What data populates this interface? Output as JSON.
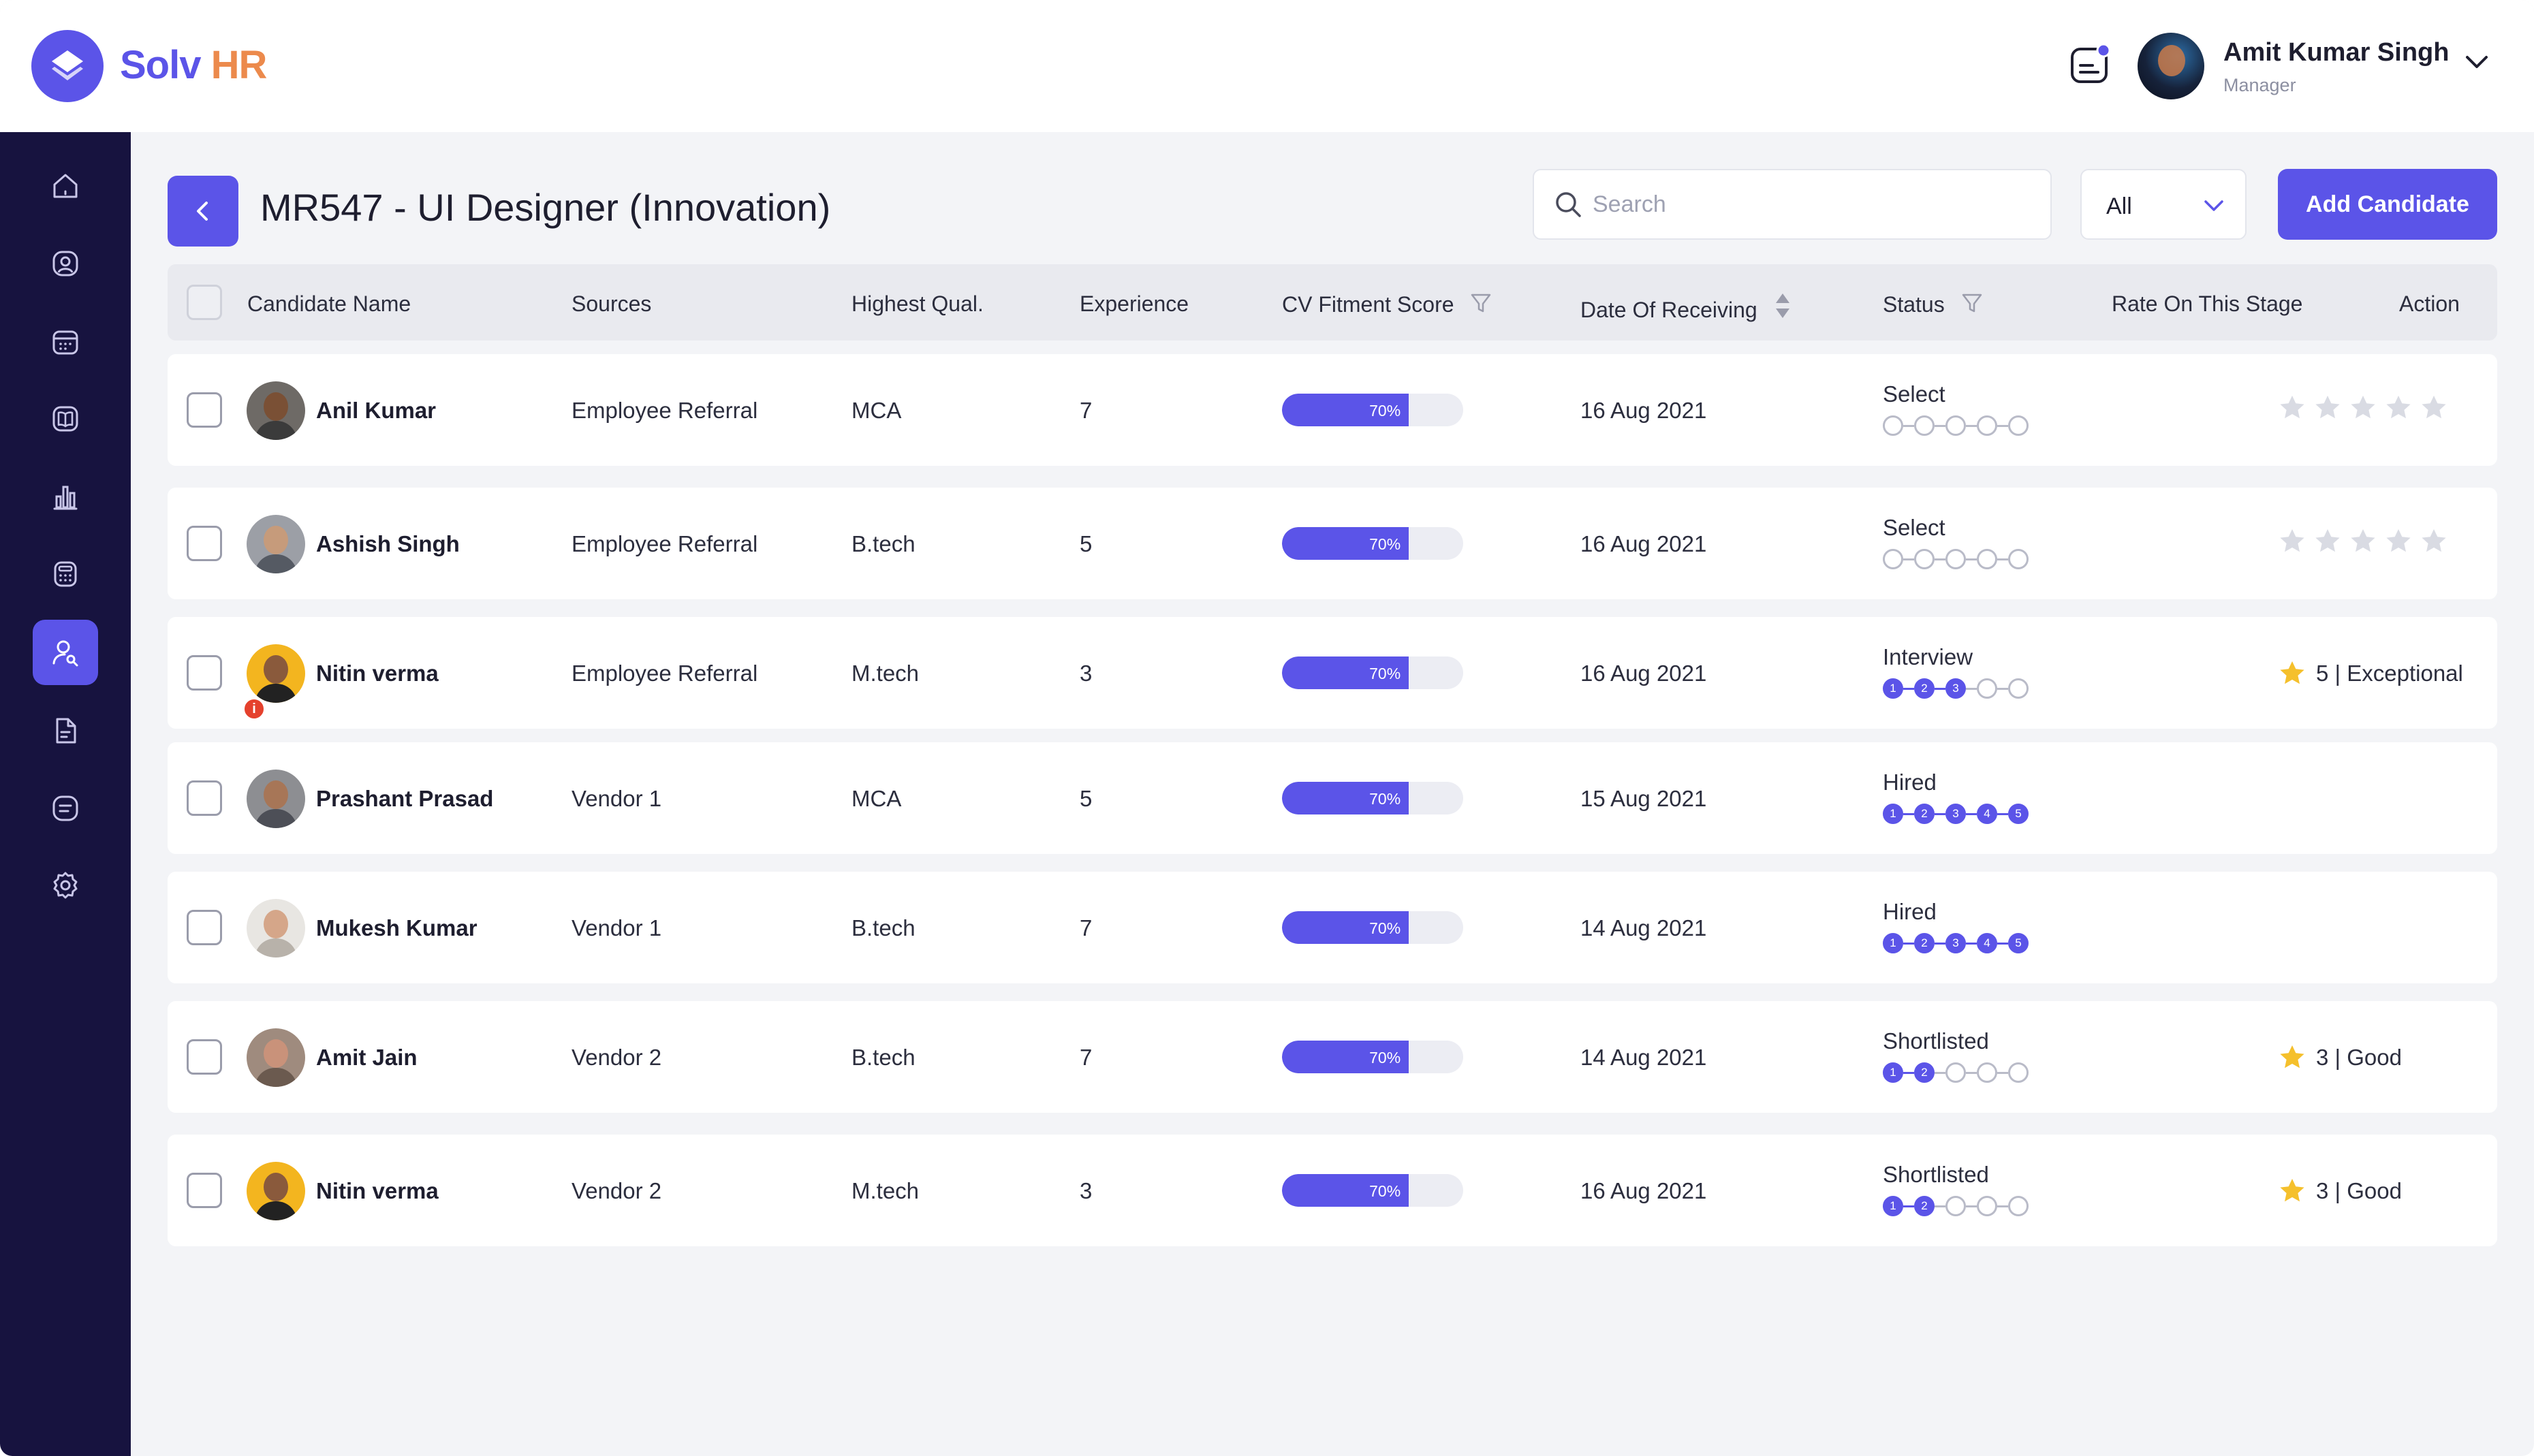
{
  "brand": {
    "part1": "Solv",
    "part2": "HR"
  },
  "user": {
    "name": "Amit Kumar Singh",
    "role": "Manager"
  },
  "sidebar": {
    "items": [
      {
        "icon": "home-icon"
      },
      {
        "icon": "user-circle-icon"
      },
      {
        "icon": "calendar-icon"
      },
      {
        "icon": "book-icon"
      },
      {
        "icon": "bar-chart-icon"
      },
      {
        "icon": "calculator-icon"
      },
      {
        "icon": "user-search-icon",
        "active": true
      },
      {
        "icon": "document-icon"
      },
      {
        "icon": "list-icon"
      },
      {
        "icon": "settings-icon"
      }
    ]
  },
  "page": {
    "title": "MR547 - UI Designer (Innovation)"
  },
  "search": {
    "placeholder": "Search",
    "value": ""
  },
  "filter": {
    "selected": "All"
  },
  "add_button": "Add Candidate",
  "table": {
    "headers": {
      "name": "Candidate Name",
      "source": "Sources",
      "qual": "Highest Qual.",
      "exp": "Experience",
      "score": "CV Fitment Score",
      "date": "Date Of Receiving",
      "status": "Status",
      "rate": "Rate On This Stage",
      "action": "Action"
    },
    "rows": [
      {
        "name": "Anil Kumar",
        "source": "Employee Referral",
        "qual": "MCA",
        "exp": "7",
        "score": "70%",
        "score_value": 0.7,
        "date": "16 Aug 2021",
        "status": "Select",
        "steps_done": 0,
        "rating": null
      },
      {
        "name": "Ashish Singh",
        "source": "Employee Referral",
        "qual": "B.tech",
        "exp": "5",
        "score": "70%",
        "score_value": 0.7,
        "date": "16 Aug 2021",
        "status": "Select",
        "steps_done": 0,
        "rating": null
      },
      {
        "name": "Nitin verma",
        "source": "Employee Referral",
        "qual": "M.tech",
        "exp": "3",
        "score": "70%",
        "score_value": 0.7,
        "date": "16 Aug 2021",
        "status": "Interview",
        "steps_done": 3,
        "rating": "5 | Exceptional",
        "badge": "i"
      },
      {
        "name": "Prashant Prasad",
        "source": "Vendor 1",
        "qual": "MCA",
        "exp": "5",
        "score": "70%",
        "score_value": 0.7,
        "date": "15 Aug 2021",
        "status": "Hired",
        "steps_done": 5,
        "rating": ""
      },
      {
        "name": "Mukesh Kumar",
        "source": "Vendor 1",
        "qual": "B.tech",
        "exp": "7",
        "score": "70%",
        "score_value": 0.7,
        "date": "14 Aug 2021",
        "status": "Hired",
        "steps_done": 5,
        "rating": ""
      },
      {
        "name": "Amit Jain",
        "source": "Vendor 2",
        "qual": "B.tech",
        "exp": "7",
        "score": "70%",
        "score_value": 0.7,
        "date": "14 Aug 2021",
        "status": "Shortlisted",
        "steps_done": 2,
        "rating": "3 | Good"
      },
      {
        "name": "Nitin verma",
        "source": "Vendor 2",
        "qual": "M.tech",
        "exp": "3",
        "score": "70%",
        "score_value": 0.7,
        "date": "16 Aug 2021",
        "status": "Shortlisted",
        "steps_done": 2,
        "rating": "3 | Good"
      }
    ]
  },
  "step_numbers": [
    "1",
    "2",
    "3",
    "4",
    "5"
  ],
  "colors": {
    "accent": "#5b54e8",
    "sidebar": "#17133f",
    "brand_orange": "#ec8a4c",
    "star": "#f5c02c",
    "star_empty": "#d9dbe3"
  }
}
